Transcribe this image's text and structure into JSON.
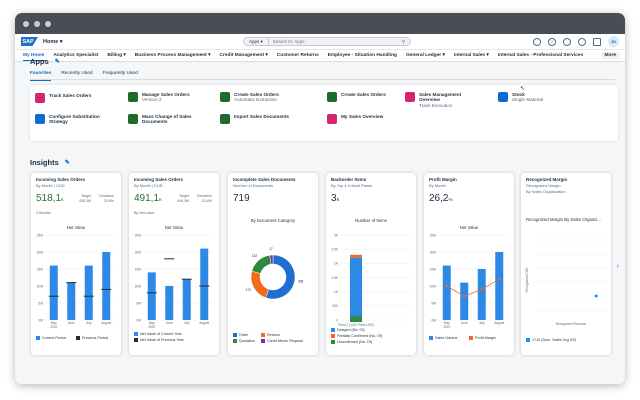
{
  "shell": {
    "logo": "SAP",
    "home_label": "Home",
    "search_scope": "Apps",
    "search_placeholder": "Search In: Apps",
    "avatar": "JD"
  },
  "menu": {
    "items": [
      "My Home",
      "Analytics Specialist",
      "Billing",
      "Business Process Management",
      "Credit Management",
      "Customer Returns",
      "Employee - Situation Handling",
      "General Ledger",
      "Internal Sales",
      "Internal Sales - Professional Services"
    ],
    "more": "More"
  },
  "apps": {
    "title": "Apps",
    "tabs": [
      "Favorites",
      "Recently Used",
      "Frequently Used"
    ],
    "tiles": [
      {
        "title": "Track Sales Orders",
        "sub": "",
        "color": "#d6246e"
      },
      {
        "title": "Manage Sales Orders",
        "sub": "Version 2",
        "color": "#1e6b2e"
      },
      {
        "title": "Create Sales Orders",
        "sub": "Automatic Extraction",
        "color": "#1e6b2e"
      },
      {
        "title": "Create Sales Orders",
        "sub": "",
        "color": "#1e6b2e"
      },
      {
        "title": "Sales Management Overview",
        "sub": "Track Execution",
        "color": "#d6246e"
      },
      {
        "title": "Stock",
        "sub": "Single Material",
        "color": "#0a6ed1"
      },
      {
        "title": "Configure Substitution Strategy",
        "sub": "",
        "color": "#0a6ed1"
      },
      {
        "title": "Mass Change of Sales Documents",
        "sub": "",
        "color": "#1e6b2e"
      },
      {
        "title": "Import Sales Documents",
        "sub": "",
        "color": "#1e6b2e"
      },
      {
        "title": "My Sales Overview",
        "sub": "",
        "color": "#d6246e"
      }
    ]
  },
  "insights": {
    "title": "Insights",
    "cards": [
      {
        "title": "Incoming Sales Orders",
        "sub": "By Month | USD",
        "kpi": "518,1",
        "unit": "K",
        "target": "Target",
        "target_val": "405,3M",
        "dev": "Deviation",
        "dev_val": "20,8%",
        "period": "4 Months",
        "chart_title": "Net Value",
        "legend": [
          "Current Period",
          "Previous Period"
        ]
      },
      {
        "title": "Incoming Sales Orders",
        "sub": "By Month | EUR",
        "kpi": "491,1",
        "unit": "K",
        "target": "Target",
        "target_val": "405,3M",
        "dev": "Deviation",
        "dev_val": "20,8%",
        "period": "By Net value",
        "chart_title": "Net Value",
        "legend": [
          "Net Value of Current Year",
          "Net Value of Previous Year"
        ]
      },
      {
        "title": "Incomplete Sales Documents",
        "sub": "Number of Documents",
        "kpi": "719",
        "chart_title": "By Document Category",
        "legend": [
          "Order",
          "Returns",
          "Quotation",
          "Credit Memo Request"
        ]
      },
      {
        "title": "Backorder Items",
        "sub": "By Top 4 Critical Plants",
        "kpi": "3",
        "unit": "K",
        "chart_title": "Number of Items",
        "legend": [
          "Delayed (No. Of)",
          "Partially Confirmed (No. Of)",
          "Unconfirmed (No. Of)"
        ]
      },
      {
        "title": "Profit Margin",
        "sub": "By Month",
        "kpi": "26,2",
        "unit": "%",
        "chart_title": "Net Value",
        "legend": [
          "Sales Volume",
          "Profit Margin"
        ]
      },
      {
        "title": "Recognized Margin",
        "sub": "Recognized Margin",
        "sub2": "By Sales Organization",
        "chart_title": "Recognized Margin By Sales Organiz...",
        "xlabel": "Recognized Revenue",
        "ylabel": "Recognized COS",
        "legend": [
          "1710 (Dom. Sales Org US)"
        ]
      }
    ]
  },
  "chart_data": [
    {
      "type": "bar",
      "title": "Net Value",
      "categories": [
        "May 2022",
        "June",
        "July",
        "August"
      ],
      "series": [
        {
          "name": "Current Period",
          "values": [
            16,
            11,
            16,
            20
          ]
        },
        {
          "name": "Previous Period",
          "values": [
            7,
            11,
            7,
            9
          ]
        }
      ],
      "ylabel": "",
      "ylim": [
        0,
        25
      ],
      "yticks": [
        "0M",
        "5M",
        "10M",
        "15M",
        "20M",
        "25M"
      ]
    },
    {
      "type": "bar",
      "title": "Net Value",
      "categories": [
        "May 2022",
        "June",
        "July",
        "August"
      ],
      "series": [
        {
          "name": "Net Value of Current Year",
          "values": [
            14,
            10,
            12,
            21
          ]
        },
        {
          "name": "Net Value of Previous Year",
          "values": [
            8,
            18,
            12,
            10
          ]
        }
      ],
      "ylim": [
        0,
        25
      ],
      "yticks": [
        "0M",
        "5M",
        "10M",
        "15M",
        "20M",
        "25M"
      ]
    },
    {
      "type": "pie",
      "title": "By Document Category",
      "categories": [
        "Order",
        "Returns",
        "Quotation",
        "Credit Memo Request"
      ],
      "values": [
        398,
        172,
        132,
        17
      ]
    },
    {
      "type": "bar",
      "title": "Number of Items",
      "categories": [
        "Plant 1 (1010 Plant US2)"
      ],
      "series": [
        {
          "name": "Delayed (No. Of)",
          "values": [
            2.2
          ]
        },
        {
          "name": "Partially Confirmed (No. Of)",
          "values": [
            0.1
          ]
        },
        {
          "name": "Unconfirmed (No. Of)",
          "values": [
            0.2
          ]
        }
      ],
      "ylim": [
        0,
        3
      ],
      "yticks": [
        "0",
        "500",
        "1K",
        "1.5K",
        "2K",
        "2.5K",
        "3K"
      ]
    },
    {
      "type": "bar",
      "title": "Net Value",
      "categories": [
        "May 2022",
        "June",
        "July",
        "August"
      ],
      "series": [
        {
          "name": "Sales Volume",
          "values": [
            16,
            11,
            15,
            20
          ]
        },
        {
          "name": "Profit Margin",
          "values": [
            10,
            7,
            9,
            12
          ]
        }
      ],
      "ylim": [
        0,
        25
      ],
      "yticks": [
        "0M",
        "5M",
        "10M",
        "15M",
        "20M",
        "25M"
      ]
    },
    {
      "type": "scatter",
      "title": "Recognized Margin By Sales Organiz...",
      "xlabel": "Recognized Revenue",
      "ylabel": "Recognized COS",
      "series": [
        {
          "name": "1710 (Dom. Sales Org US)",
          "points": [
            [
              0.85,
              0.2
            ]
          ]
        }
      ]
    }
  ]
}
